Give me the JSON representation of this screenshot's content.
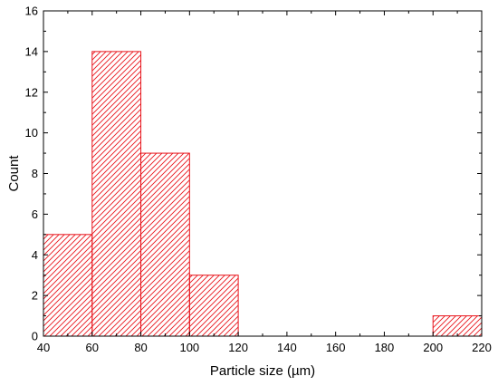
{
  "chart_data": {
    "type": "bar",
    "subtype": "histogram",
    "xlabel": "Particle size (µm)",
    "ylabel": "Count",
    "xlim": [
      40,
      220
    ],
    "ylim": [
      0,
      16
    ],
    "x_ticks": [
      "40",
      "60",
      "80",
      "100",
      "120",
      "140",
      "160",
      "180",
      "200",
      "220"
    ],
    "y_ticks": [
      "0",
      "2",
      "4",
      "6",
      "8",
      "10",
      "12",
      "14",
      "16"
    ],
    "bins": [
      {
        "start": 40,
        "end": 60,
        "count": 5
      },
      {
        "start": 60,
        "end": 80,
        "count": 14
      },
      {
        "start": 80,
        "end": 100,
        "count": 9
      },
      {
        "start": 100,
        "end": 120,
        "count": 3
      },
      {
        "start": 200,
        "end": 220,
        "count": 1
      }
    ],
    "bar_color": "#e8141b",
    "fill_pattern": "diagonal-hatch",
    "grid": false,
    "legend": "none"
  }
}
